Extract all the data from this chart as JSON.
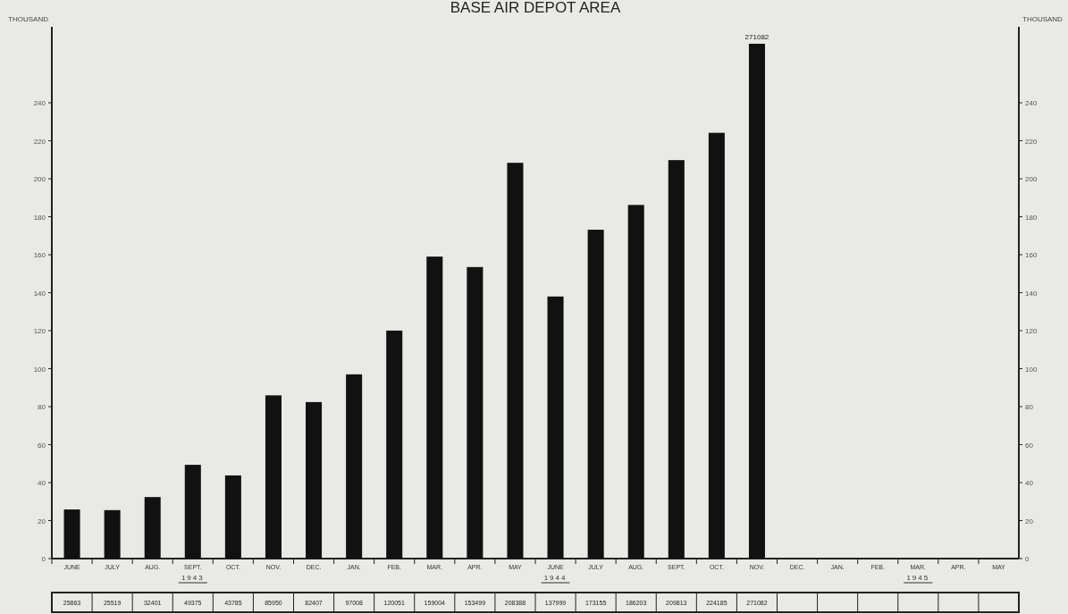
{
  "chart_data": {
    "type": "bar",
    "title": "BASE AIR DEPOT AREA",
    "ylabel": "THOUSAND",
    "y2label": "THOUSAND",
    "categories": [
      "JUNE",
      "JULY",
      "AUG.",
      "SEPT.",
      "OCT.",
      "NOV.",
      "DEC.",
      "JAN.",
      "FEB.",
      "MAR.",
      "APR.",
      "MAY",
      "JUNE",
      "JULY",
      "AUG.",
      "SEPT.",
      "OCT.",
      "NOV.",
      "DEC.",
      "JAN.",
      "FEB.",
      "MAR.",
      "APR.",
      "MAY"
    ],
    "values": [
      25.863,
      25.519,
      32.401,
      49.375,
      43.785,
      85.95,
      82.407,
      97.008,
      120.051,
      159.004,
      153.499,
      208.388,
      137.999,
      173.155,
      186.203,
      209.813,
      224.185,
      271.082,
      null,
      null,
      null,
      null,
      null,
      null
    ],
    "color": "#111111",
    "ylim": [
      0,
      280
    ],
    "yticks": [
      0,
      20,
      40,
      60,
      80,
      100,
      120,
      140,
      160,
      180,
      200,
      220,
      240
    ],
    "y2lim": [
      0,
      280
    ],
    "y2ticks": [
      0,
      20,
      40,
      60,
      80,
      100,
      120,
      140,
      160,
      180,
      200,
      220,
      240
    ],
    "annotations": [
      "1943",
      "1944",
      "1945",
      "271082",
      "25863",
      "25519",
      "32401",
      "49375",
      "43785",
      "85950",
      "82407",
      "97008",
      "120051",
      "159004",
      "153499",
      "208388",
      "137999",
      "173155",
      "186203",
      "209813",
      "224185",
      "271082"
    ]
  }
}
